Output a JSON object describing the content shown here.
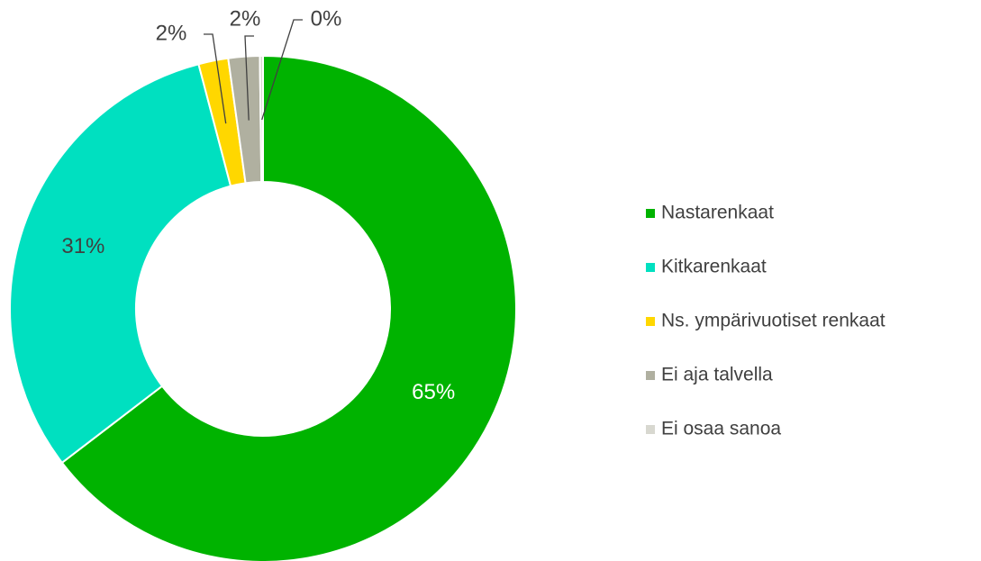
{
  "chart_data": {
    "type": "donut",
    "categories": [
      "Nastarenkaat",
      "Kitkarenkaat",
      "Ns. ympärivuotiset renkaat",
      "Ei aja talvella",
      "Ei osaa sanoa"
    ],
    "values": [
      64.6,
      31.3,
      1.9,
      2.0,
      0.2
    ],
    "value_labels": [
      "65%",
      "31%",
      "2%",
      "2%",
      "0%"
    ],
    "colors": [
      "#00b300",
      "#00e0c0",
      "#ffd700",
      "#b0b0a0",
      "#d8d8d0"
    ],
    "legend": "right"
  }
}
